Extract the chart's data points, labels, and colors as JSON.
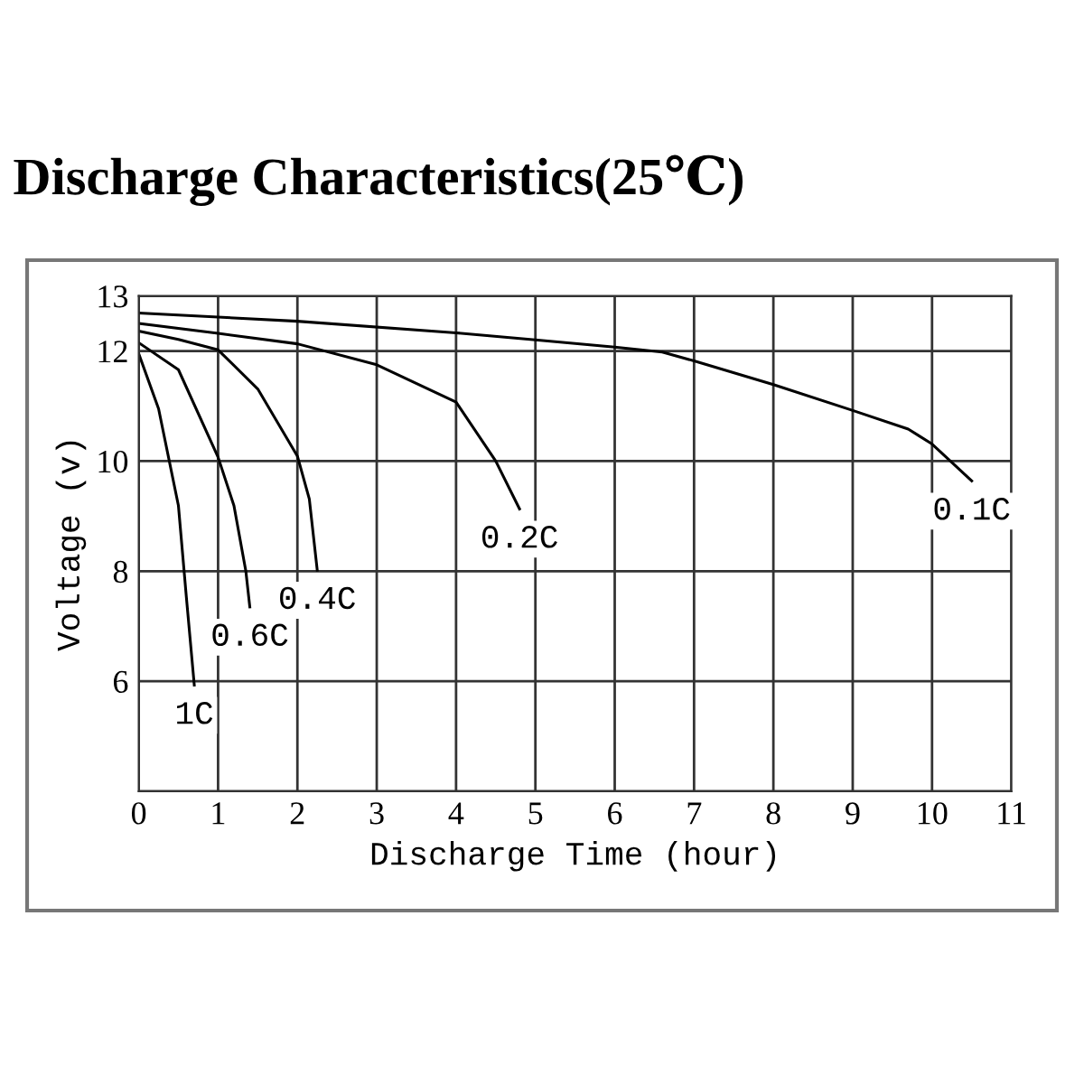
{
  "chart_data": {
    "type": "line",
    "title": "Discharge Characteristics(25℃)",
    "xlabel": "Discharge Time (hour)",
    "ylabel": "Voltage (v)",
    "xlim": [
      0,
      11
    ],
    "xticks": [
      0,
      1,
      2,
      3,
      4,
      5,
      6,
      7,
      8,
      9,
      10,
      11
    ],
    "ylim": [
      4,
      13
    ],
    "yticks": [
      {
        "value": 4,
        "label": null
      },
      6,
      8,
      10,
      12,
      13
    ],
    "grid": true,
    "legend": false,
    "marker": "none",
    "line_style": "solid",
    "series": [
      {
        "name": "1C",
        "color": "#000000",
        "x": [
          0,
          0.25,
          0.5,
          0.6,
          0.7
        ],
        "values": [
          11.95,
          10.95,
          9.19,
          7.53,
          5.93
        ]
      },
      {
        "name": "0.6C",
        "color": "#000000",
        "x": [
          0,
          0.5,
          1,
          1.2,
          1.35,
          1.4
        ],
        "values": [
          12.15,
          11.66,
          10.07,
          9.19,
          8.0,
          7.35
        ]
      },
      {
        "name": "0.4C",
        "color": "#000000",
        "x": [
          0,
          0.5,
          1,
          1.5,
          2,
          2.15,
          2.25
        ],
        "values": [
          12.36,
          12.21,
          12.02,
          11.31,
          10.09,
          9.31,
          8.02
        ]
      },
      {
        "name": "0.2C",
        "color": "#000000",
        "x": [
          0,
          1,
          2,
          3,
          4,
          4.5,
          4.8
        ],
        "values": [
          12.5,
          12.32,
          12.13,
          11.75,
          11.07,
          10.0,
          9.13
        ]
      },
      {
        "name": "0.1C",
        "color": "#000000",
        "x": [
          0,
          2,
          4,
          5,
          6,
          6.6,
          7,
          8,
          9,
          9.7,
          10,
          10.5
        ],
        "values": [
          12.69,
          12.54,
          12.33,
          12.2,
          12.07,
          11.98,
          11.82,
          11.39,
          10.92,
          10.58,
          10.31,
          9.64
        ]
      }
    ]
  }
}
